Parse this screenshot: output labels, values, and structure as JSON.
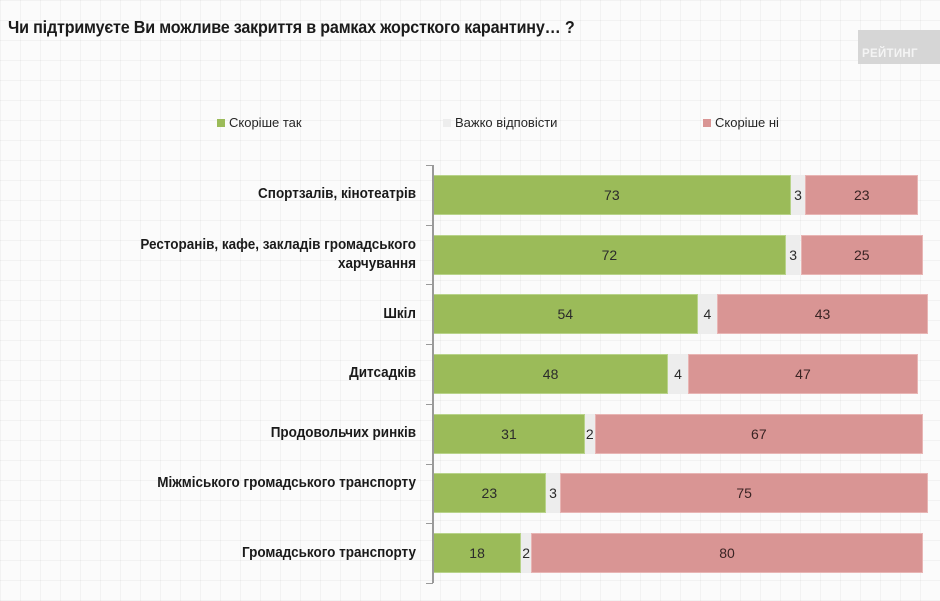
{
  "header": {
    "title": "Чи підтримуєте Ви можливе закриття в рамках жорсткого карантину… ?",
    "brand": "РЕЙТИНГ"
  },
  "colors": {
    "yes": "#9bbb59",
    "hard": "#ededed",
    "no": "#d99594"
  },
  "chart_data": {
    "type": "bar",
    "orientation": "horizontal",
    "stacked": true,
    "title": "Чи підтримуєте Ви можливе закриття в рамках жорсткого карантину… ?",
    "xlabel": "",
    "ylabel": "",
    "xlim": [
      0,
      100
    ],
    "grid": false,
    "legend_position": "top",
    "categories": [
      "Спортзалів, кінотеатрів",
      "Ресторанів, кафе, закладів громадського харчування",
      "Шкіл",
      "Дитсадків",
      "Продовольчих ринків",
      "Міжміського громадського транспорту",
      "Громадського транспорту"
    ],
    "series": [
      {
        "name": "Скоріше так",
        "color": "#9bbb59",
        "values": [
          73,
          72,
          54,
          48,
          31,
          23,
          18
        ]
      },
      {
        "name": "Важко відповісти",
        "color": "#ededed",
        "values": [
          3,
          3,
          4,
          4,
          2,
          3,
          2
        ]
      },
      {
        "name": "Скоріше ні",
        "color": "#d99594",
        "values": [
          23,
          25,
          43,
          47,
          67,
          75,
          80
        ]
      }
    ]
  }
}
